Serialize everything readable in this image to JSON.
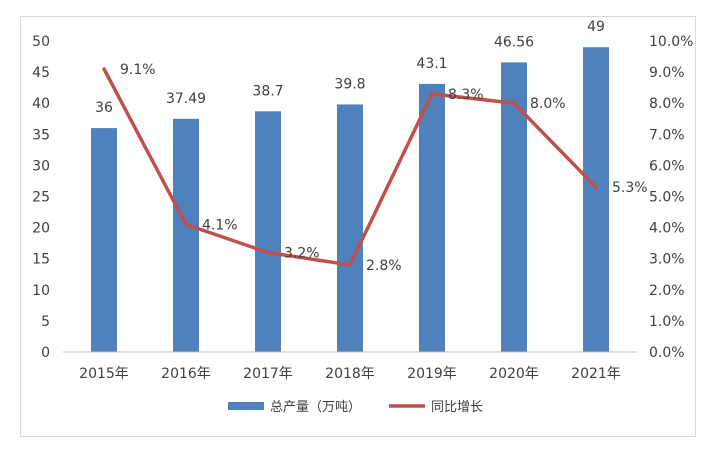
{
  "chart_data": {
    "type": "bar+line",
    "categories": [
      "2015年",
      "2016年",
      "2017年",
      "2018年",
      "2019年",
      "2020年",
      "2021年"
    ],
    "series": [
      {
        "name": "总产量（万吨）",
        "type": "bar",
        "axis": "left",
        "values": [
          36,
          37.49,
          38.7,
          39.8,
          43.1,
          46.56,
          49
        ],
        "labels": [
          "36",
          "37.49",
          "38.7",
          "39.8",
          "43.1",
          "46.56",
          "49"
        ],
        "color": "#4f81bd"
      },
      {
        "name": "同比增长",
        "type": "line",
        "axis": "right",
        "values": [
          9.1,
          4.1,
          3.2,
          2.8,
          8.3,
          8.0,
          5.3
        ],
        "labels": [
          "9.1%",
          "4.1%",
          "3.2%",
          "2.8%",
          "8.3%",
          "8.0%",
          "5.3%"
        ],
        "color": "#c0504d"
      }
    ],
    "y_left": {
      "min": 0,
      "max": 50,
      "step": 5,
      "ticks": [
        "0",
        "5",
        "10",
        "15",
        "20",
        "25",
        "30",
        "35",
        "40",
        "45",
        "50"
      ]
    },
    "y_right": {
      "min": 0,
      "max": 10,
      "step": 1,
      "ticks": [
        "0.0%",
        "1.0%",
        "2.0%",
        "3.0%",
        "4.0%",
        "5.0%",
        "6.0%",
        "7.0%",
        "8.0%",
        "9.0%",
        "10.0%"
      ]
    },
    "gridlines": false,
    "legend": "bottom"
  }
}
